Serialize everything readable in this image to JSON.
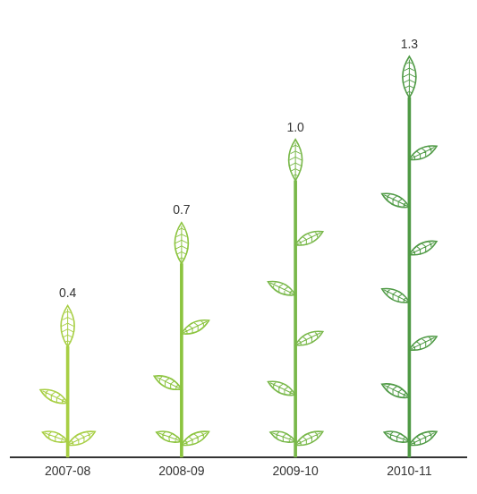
{
  "chart_data": {
    "type": "bar",
    "categories": [
      "2007-08",
      "2008-09",
      "2009-10",
      "2010-11"
    ],
    "values": [
      0.4,
      0.7,
      1.0,
      1.3
    ],
    "value_labels": [
      "0.4",
      "0.7",
      "1.0",
      "1.3"
    ],
    "colors": [
      "#a8cf45",
      "#8cc43f",
      "#79b84a",
      "#4f9a45"
    ],
    "ylim": [
      0,
      1.4
    ],
    "grid": false,
    "data_labels": true,
    "tick_labels": "x"
  }
}
